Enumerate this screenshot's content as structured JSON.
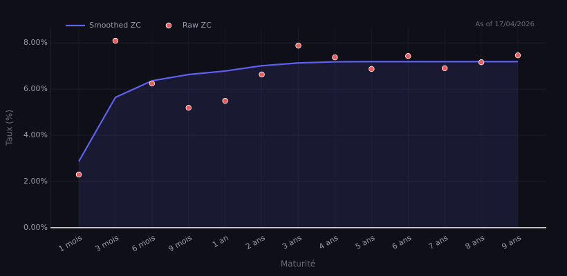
{
  "chart_data": {
    "type": "line",
    "annotation": "As of 17/04/2026",
    "x_label": "Maturité",
    "y_label": "Taux (%)",
    "categories": [
      "1 mois",
      "3 mois",
      "6 mois",
      "9 mois",
      "1 an",
      "2 ans",
      "3 ans",
      "4 ans",
      "5 ans",
      "6 ans",
      "7 ans",
      "8 ans",
      "9 ans"
    ],
    "series": [
      {
        "name": "Smoothed ZC",
        "type": "line",
        "color": "#6060f0",
        "area": true,
        "values": [
          2.87,
          5.64,
          6.36,
          6.63,
          6.78,
          7.01,
          7.13,
          7.18,
          7.19,
          7.19,
          7.19,
          7.19,
          7.19
        ]
      },
      {
        "name": "Raw ZC",
        "type": "scatter",
        "color": "#f05a5a",
        "values": [
          2.3,
          8.09,
          6.24,
          5.19,
          5.49,
          6.63,
          7.88,
          7.37,
          6.87,
          7.43,
          6.9,
          7.16,
          7.46
        ]
      }
    ],
    "ylim": [
      0,
      8.66
    ],
    "yticks": [
      {
        "value": 0,
        "label": "0.00%"
      },
      {
        "value": 2,
        "label": "2.00%"
      },
      {
        "value": 4,
        "label": "4.00%"
      },
      {
        "value": 6,
        "label": "6.00%"
      },
      {
        "value": 8,
        "label": "8.00%"
      }
    ],
    "grid": true,
    "legend": "top-left"
  }
}
